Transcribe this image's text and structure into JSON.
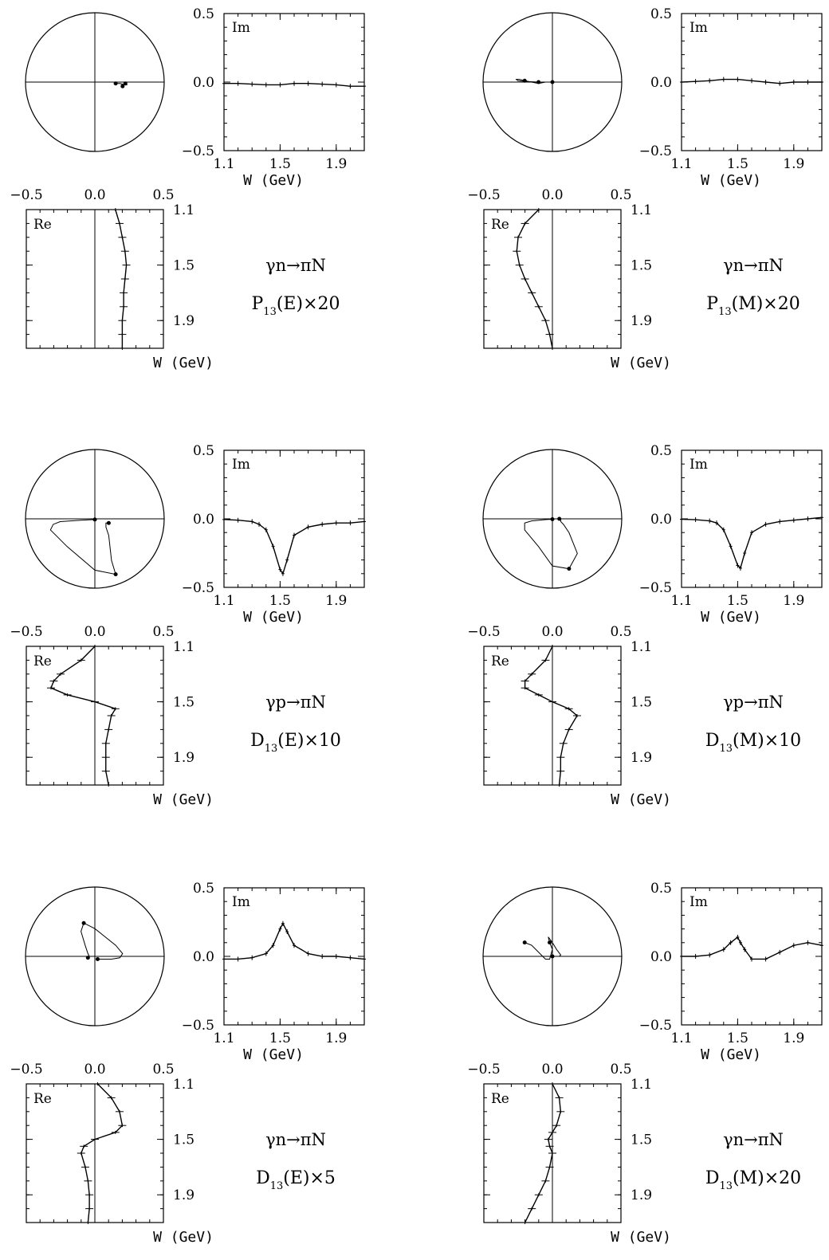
{
  "labels": {
    "im": "Im",
    "re": "Re",
    "w_axis": "W  (GeV)",
    "im_y_ticks": [
      "0.5",
      "0.0",
      "−0.5"
    ],
    "w_ticks": [
      "1.1",
      "1.5",
      "1.9"
    ],
    "re_x_ticks": [
      "−0.5",
      "0.0",
      "0.5"
    ],
    "re_w_ticks": [
      "1.1",
      "1.5",
      "1.9"
    ]
  },
  "chart_data": [
    {
      "type": "line",
      "reaction": "γn→πN",
      "amplitude": {
        "letter": "P",
        "sub": "13",
        "rest": "(E)×20"
      },
      "x_im": [
        1.1,
        1.2,
        1.3,
        1.4,
        1.5,
        1.6,
        1.7,
        1.8,
        1.9,
        2.0,
        2.1
      ],
      "im_values": [
        -0.01,
        -0.01,
        -0.015,
        -0.02,
        -0.02,
        -0.01,
        -0.01,
        -0.015,
        -0.02,
        -0.03,
        -0.03
      ],
      "w_re": [
        1.1,
        1.2,
        1.3,
        1.4,
        1.5,
        1.6,
        1.7,
        1.8,
        1.9,
        2.0,
        2.1
      ],
      "re_values": [
        0.15,
        0.18,
        0.2,
        0.22,
        0.23,
        0.22,
        0.21,
        0.21,
        0.2,
        0.2,
        0.2
      ],
      "xlim": [
        1.1,
        2.1
      ],
      "ylim": [
        -0.5,
        0.5
      ]
    },
    {
      "type": "line",
      "reaction": "γn→πN",
      "amplitude": {
        "letter": "P",
        "sub": "13",
        "rest": "(M)×20"
      },
      "x_im": [
        1.1,
        1.2,
        1.3,
        1.4,
        1.5,
        1.6,
        1.7,
        1.8,
        1.9,
        2.0,
        2.1
      ],
      "im_values": [
        0.0,
        0.005,
        0.01,
        0.02,
        0.02,
        0.01,
        0.0,
        -0.01,
        0.0,
        0.0,
        0.0
      ],
      "w_re": [
        1.1,
        1.2,
        1.3,
        1.4,
        1.5,
        1.6,
        1.7,
        1.8,
        1.9,
        2.0,
        2.1
      ],
      "re_values": [
        -0.1,
        -0.2,
        -0.25,
        -0.26,
        -0.24,
        -0.2,
        -0.15,
        -0.1,
        -0.05,
        -0.02,
        0.0
      ],
      "xlim": [
        1.1,
        2.1
      ],
      "ylim": [
        -0.5,
        0.5
      ]
    },
    {
      "type": "line",
      "reaction": "γp→πN",
      "amplitude": {
        "letter": "D",
        "sub": "13",
        "rest": "(E)×10"
      },
      "x_im": [
        1.1,
        1.2,
        1.3,
        1.35,
        1.4,
        1.45,
        1.5,
        1.52,
        1.55,
        1.6,
        1.7,
        1.8,
        1.9,
        2.0,
        2.1
      ],
      "im_values": [
        -0.005,
        -0.01,
        -0.02,
        -0.04,
        -0.08,
        -0.2,
        -0.37,
        -0.4,
        -0.3,
        -0.12,
        -0.06,
        -0.04,
        -0.03,
        -0.03,
        -0.02
      ],
      "w_re": [
        1.1,
        1.2,
        1.3,
        1.35,
        1.4,
        1.45,
        1.5,
        1.55,
        1.6,
        1.7,
        1.8,
        1.9,
        2.0,
        2.1
      ],
      "re_values": [
        0.0,
        -0.1,
        -0.25,
        -0.3,
        -0.32,
        -0.2,
        0.0,
        0.15,
        0.12,
        0.1,
        0.08,
        0.08,
        0.08,
        0.1
      ],
      "xlim": [
        1.1,
        2.1
      ],
      "ylim": [
        -0.5,
        0.5
      ]
    },
    {
      "type": "line",
      "reaction": "γp→πN",
      "amplitude": {
        "letter": "D",
        "sub": "13",
        "rest": "(M)×10"
      },
      "x_im": [
        1.1,
        1.2,
        1.3,
        1.35,
        1.4,
        1.45,
        1.5,
        1.52,
        1.55,
        1.6,
        1.7,
        1.8,
        1.9,
        2.0,
        2.1
      ],
      "im_values": [
        -0.003,
        -0.006,
        -0.015,
        -0.03,
        -0.08,
        -0.2,
        -0.34,
        -0.36,
        -0.25,
        -0.1,
        -0.04,
        -0.02,
        -0.01,
        0.0,
        0.01
      ],
      "w_re": [
        1.1,
        1.2,
        1.3,
        1.35,
        1.4,
        1.45,
        1.5,
        1.55,
        1.6,
        1.7,
        1.8,
        1.9,
        2.0,
        2.1
      ],
      "re_values": [
        0.0,
        -0.05,
        -0.15,
        -0.2,
        -0.2,
        -0.1,
        0.0,
        0.12,
        0.18,
        0.12,
        0.08,
        0.06,
        0.06,
        0.05
      ],
      "xlim": [
        1.1,
        2.1
      ],
      "ylim": [
        -0.5,
        0.5
      ]
    },
    {
      "type": "line",
      "reaction": "γn→πN",
      "amplitude": {
        "letter": "D",
        "sub": "13",
        "rest": "(E)×5"
      },
      "x_im": [
        1.1,
        1.2,
        1.3,
        1.4,
        1.45,
        1.5,
        1.52,
        1.55,
        1.6,
        1.7,
        1.8,
        1.9,
        2.0,
        2.1
      ],
      "im_values": [
        -0.02,
        -0.02,
        -0.01,
        0.02,
        0.08,
        0.2,
        0.24,
        0.18,
        0.08,
        0.02,
        0.0,
        0.0,
        -0.01,
        -0.02
      ],
      "w_re": [
        1.1,
        1.2,
        1.3,
        1.4,
        1.45,
        1.5,
        1.55,
        1.6,
        1.7,
        1.8,
        1.9,
        2.0,
        2.1
      ],
      "re_values": [
        0.02,
        0.12,
        0.18,
        0.2,
        0.15,
        0.0,
        -0.08,
        -0.1,
        -0.07,
        -0.05,
        -0.04,
        -0.04,
        -0.05
      ],
      "xlim": [
        1.1,
        2.1
      ],
      "ylim": [
        -0.5,
        0.5
      ]
    },
    {
      "type": "line",
      "reaction": "γn→πN",
      "amplitude": {
        "letter": "D",
        "sub": "13",
        "rest": "(M)×20"
      },
      "x_im": [
        1.1,
        1.2,
        1.3,
        1.4,
        1.45,
        1.5,
        1.52,
        1.55,
        1.6,
        1.7,
        1.8,
        1.9,
        2.0,
        2.1
      ],
      "im_values": [
        0.0,
        0.0,
        0.01,
        0.05,
        0.1,
        0.14,
        0.1,
        0.05,
        -0.02,
        -0.02,
        0.03,
        0.08,
        0.1,
        0.08
      ],
      "w_re": [
        1.1,
        1.2,
        1.3,
        1.4,
        1.45,
        1.5,
        1.55,
        1.6,
        1.7,
        1.8,
        1.9,
        2.0,
        2.1
      ],
      "re_values": [
        0.0,
        0.05,
        0.06,
        0.03,
        0.0,
        -0.03,
        -0.02,
        0.0,
        -0.02,
        -0.05,
        -0.1,
        -0.15,
        -0.2
      ],
      "xlim": [
        1.1,
        2.1
      ],
      "ylim": [
        -0.5,
        0.5
      ]
    }
  ]
}
